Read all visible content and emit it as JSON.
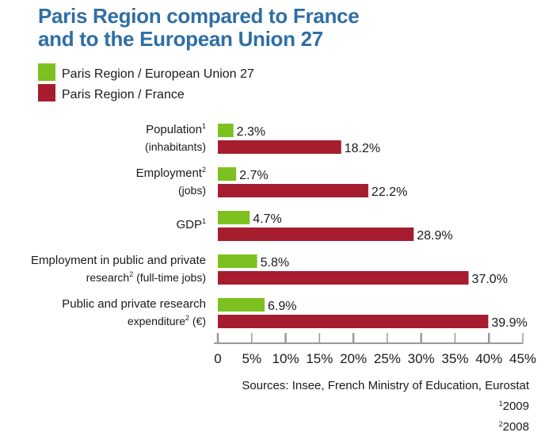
{
  "chart_data": {
    "type": "bar",
    "orientation": "horizontal",
    "title": "Paris Region compared to France and to the European Union 27",
    "title_lines": [
      "Paris Region compared to France",
      "and to the European Union 27"
    ],
    "categories": [
      {
        "lines": [
          [
            {
              "t": "Population"
            },
            {
              "sup": "1"
            }
          ],
          [
            {
              "t": "(inhabitants)"
            }
          ]
        ]
      },
      {
        "lines": [
          [
            {
              "t": "Employment"
            },
            {
              "sup": "2"
            }
          ],
          [
            {
              "t": "(jobs)"
            }
          ]
        ]
      },
      {
        "lines": [
          [
            {
              "t": "GDP"
            },
            {
              "sup": "1"
            }
          ]
        ]
      },
      {
        "lines": [
          [
            {
              "t": "Employment in public and private"
            }
          ],
          [
            {
              "t": "research"
            },
            {
              "sup": "2"
            },
            {
              "t": " (full-time jobs)"
            }
          ]
        ]
      },
      {
        "lines": [
          [
            {
              "t": "Public and private research"
            }
          ],
          [
            {
              "t": "expenditure"
            },
            {
              "sup": "2"
            },
            {
              "t": " (€)"
            }
          ]
        ]
      }
    ],
    "series": [
      {
        "name": "Paris Region / European Union 27",
        "color": "#7cc11f",
        "values": [
          2.3,
          2.7,
          4.7,
          5.8,
          6.9
        ],
        "labels": [
          "2.3%",
          "2.7%",
          "4.7%",
          "5.8%",
          "6.9%"
        ]
      },
      {
        "name": "Paris Region / France",
        "color": "#a51d2f",
        "values": [
          18.2,
          22.2,
          28.9,
          37.0,
          39.9
        ],
        "labels": [
          "18.2%",
          "22.2%",
          "28.9%",
          "37.0%",
          "39.9%"
        ]
      }
    ],
    "xlim": [
      0,
      45
    ],
    "xticks": [
      "0",
      "5%",
      "10%",
      "15%",
      "20%",
      "25%",
      "30%",
      "35%",
      "40%",
      "45%"
    ],
    "grid": false,
    "legend": "top-left",
    "title_color": "#2f6ea5",
    "sources": "Sources: Insee, French Ministry of Education, Eurostat",
    "footnotes": [
      {
        "sup": "1",
        "text": "2009"
      },
      {
        "sup": "2",
        "text": "2008"
      }
    ]
  }
}
